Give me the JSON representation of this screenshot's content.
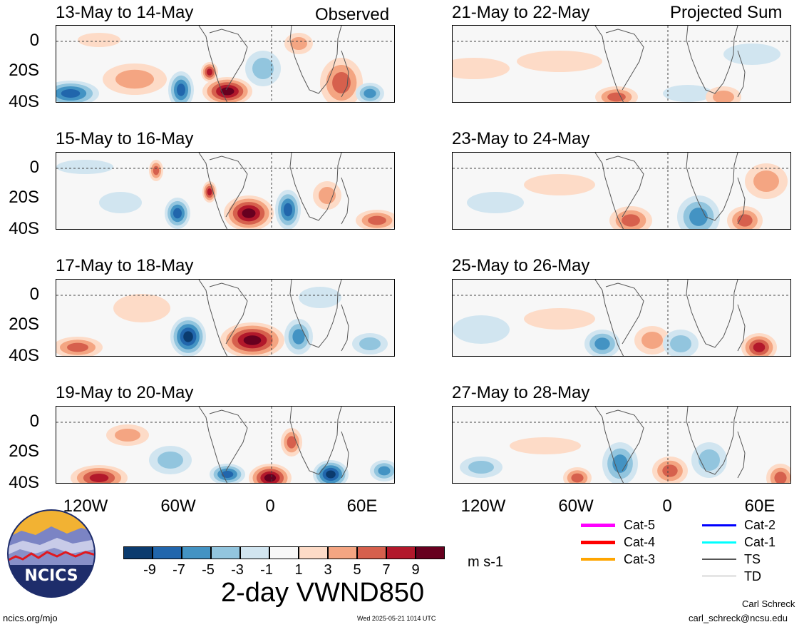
{
  "panels": {
    "observed_header": "Observed",
    "projected_header": "Projected Sum",
    "left_titles": [
      "13-May to 14-May",
      "15-May to 16-May",
      "17-May to 18-May",
      "19-May to 20-May"
    ],
    "right_titles": [
      "21-May to 22-May",
      "23-May to 24-May",
      "25-May to 26-May",
      "27-May to 28-May"
    ]
  },
  "axes": {
    "y_ticks": [
      "0",
      "20S",
      "40S"
    ],
    "x_ticks": [
      "120W",
      "60W",
      "0",
      "60E"
    ]
  },
  "colorbar": {
    "colors": [
      "#0b3b6e",
      "#2166ac",
      "#4393c3",
      "#92c5de",
      "#d1e5f0",
      "#f7f7f7",
      "#fddbc7",
      "#f4a582",
      "#d6604d",
      "#b2182b",
      "#67001f"
    ],
    "labels": [
      "-9",
      "-7",
      "-5",
      "-3",
      "-1",
      "1",
      "3",
      "5",
      "7",
      "9"
    ],
    "units": "m s-1",
    "title": "2-day VWND850"
  },
  "legend": [
    {
      "label": "Cat-5",
      "color": "#ff00ff"
    },
    {
      "label": "Cat-4",
      "color": "#ff0000"
    },
    {
      "label": "Cat-3",
      "color": "#ffa500"
    },
    {
      "label": "Cat-2",
      "color": "#0000ff"
    },
    {
      "label": "Cat-1",
      "color": "#00ffff"
    },
    {
      "label": "TS",
      "color": "#555555"
    },
    {
      "label": "TD",
      "color": "#aaaaaa"
    }
  ],
  "logo": {
    "text": "NCICS"
  },
  "footer": {
    "website": "ncics.org/mjo",
    "timestamp": "Wed 2025-05-21 1014 UTC",
    "author": "Carl Schreck",
    "email": "carl_schreck@ncsu.edu"
  }
}
